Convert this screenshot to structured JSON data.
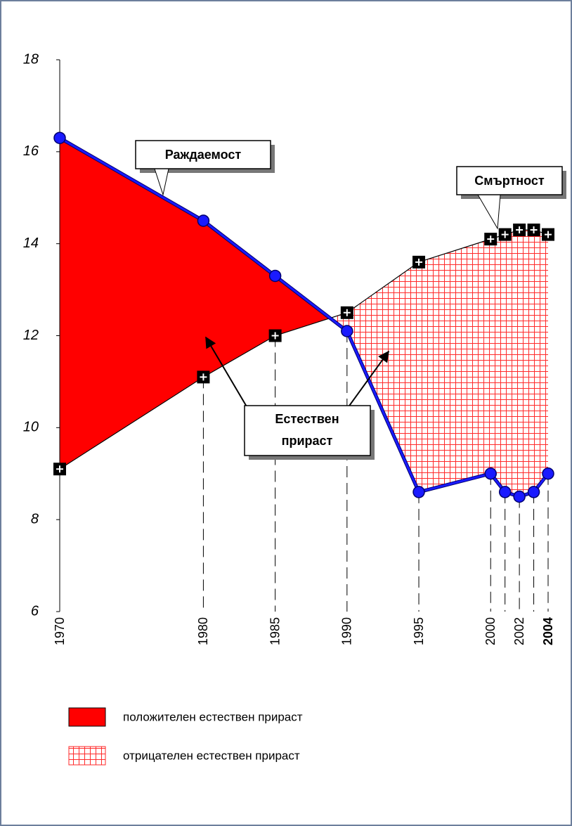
{
  "chart_data": {
    "type": "line",
    "x": [
      1970,
      1980,
      1985,
      1990,
      1995,
      2000,
      2001,
      2002,
      2003,
      2004
    ],
    "xlim": [
      1970,
      2004
    ],
    "xticks": [
      1970,
      1980,
      1985,
      1990,
      1995,
      2000,
      2002,
      2004
    ],
    "ylim": [
      6,
      18
    ],
    "yticks": [
      6,
      8,
      10,
      12,
      14,
      16,
      18
    ],
    "series": [
      {
        "name": "Раждаемост",
        "color": "#1a1aff",
        "values": [
          16.3,
          14.5,
          13.3,
          12.1,
          8.6,
          9.0,
          8.6,
          8.5,
          8.6,
          9.0
        ]
      },
      {
        "name": "Смъртност",
        "color": "#000000",
        "values": [
          9.1,
          11.1,
          12.0,
          12.5,
          13.6,
          14.1,
          14.2,
          14.3,
          14.3,
          14.2
        ]
      }
    ],
    "annotation": [
      "Естествен",
      "прираст"
    ],
    "areas": [
      {
        "name": "положителен естествен прираст",
        "color": "#ff0000"
      },
      {
        "name": "отрицателен естествен прираст",
        "color": "#ff2a2a",
        "pattern": "grid"
      }
    ]
  }
}
